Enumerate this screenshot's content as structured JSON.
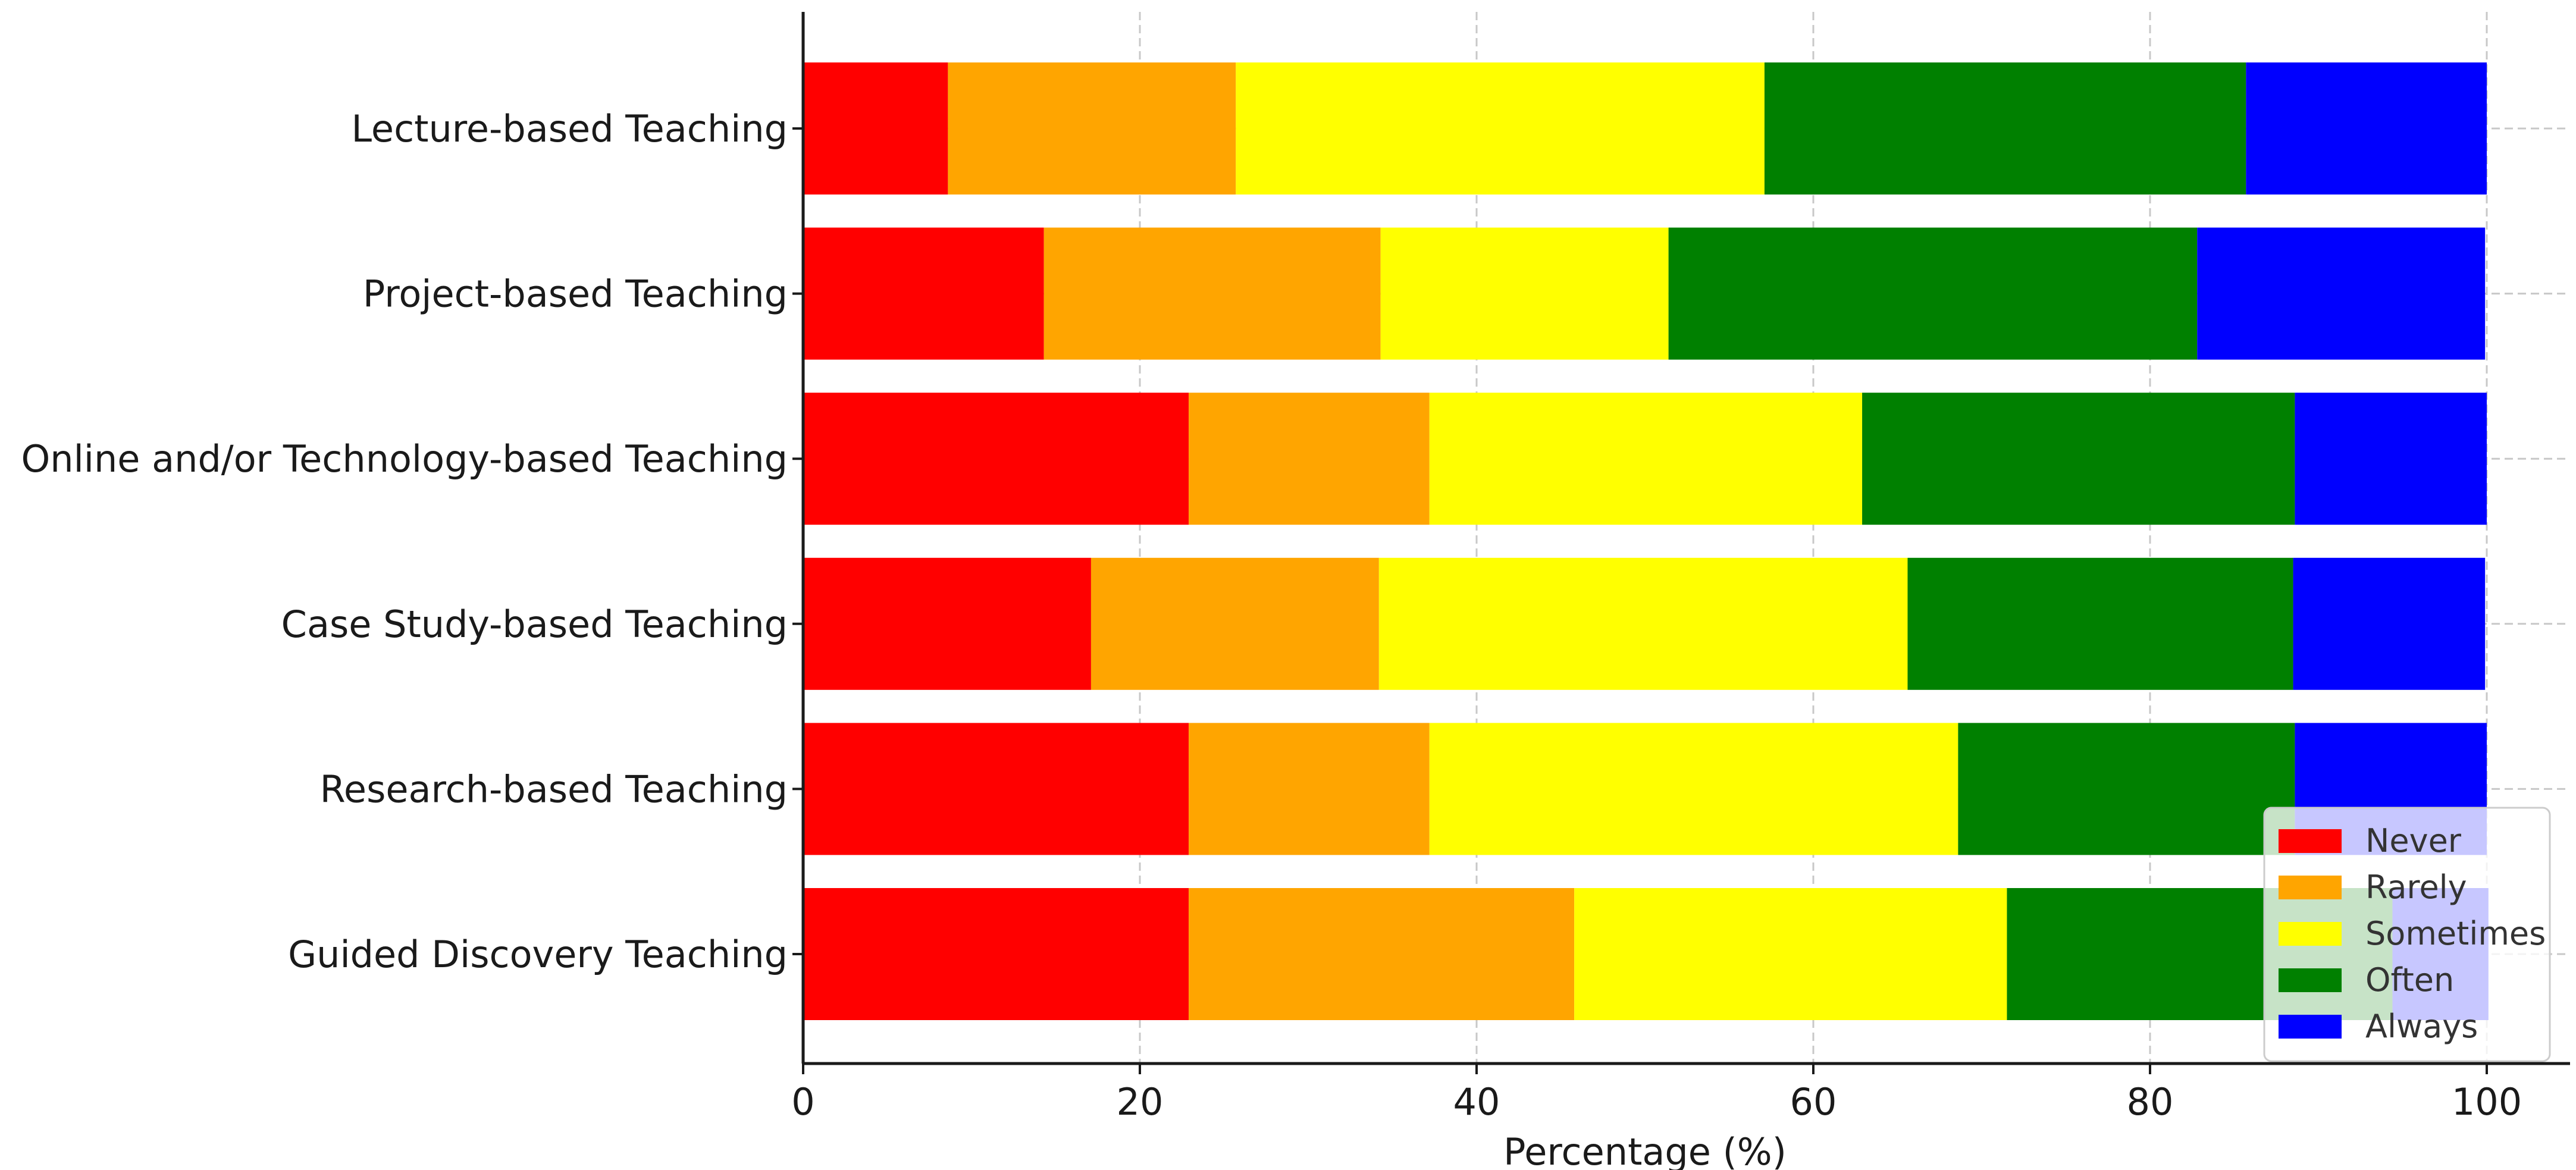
{
  "chart_data": {
    "type": "bar",
    "orientation": "horizontal",
    "stacked": true,
    "title": "",
    "xlabel": "Percentage (%)",
    "ylabel": "",
    "xlim": [
      0,
      105
    ],
    "xticks": [
      0,
      20,
      40,
      60,
      80,
      100
    ],
    "grid": true,
    "legend_position": "bottom-right",
    "categories": [
      "Lecture-based Teaching",
      "Project-based Teaching",
      "Online and/or Technology-based Teaching",
      "Case Study-based Teaching",
      "Research-based Teaching",
      "Guided Discovery Teaching"
    ],
    "series": [
      {
        "name": "Never",
        "color": "#ff0000",
        "values": [
          8.6,
          14.3,
          22.9,
          17.1,
          22.9,
          22.9
        ]
      },
      {
        "name": "Rarely",
        "color": "#ffa500",
        "values": [
          17.1,
          20.0,
          14.3,
          17.1,
          14.3,
          22.9
        ]
      },
      {
        "name": "Sometimes",
        "color": "#ffff00",
        "values": [
          31.4,
          17.1,
          25.7,
          31.4,
          31.4,
          25.7
        ]
      },
      {
        "name": "Often",
        "color": "#008000",
        "values": [
          28.6,
          31.4,
          25.7,
          22.9,
          20.0,
          22.9
        ]
      },
      {
        "name": "Always",
        "color": "#0000ff",
        "values": [
          14.3,
          17.1,
          11.4,
          11.4,
          11.4,
          5.7
        ]
      }
    ]
  }
}
